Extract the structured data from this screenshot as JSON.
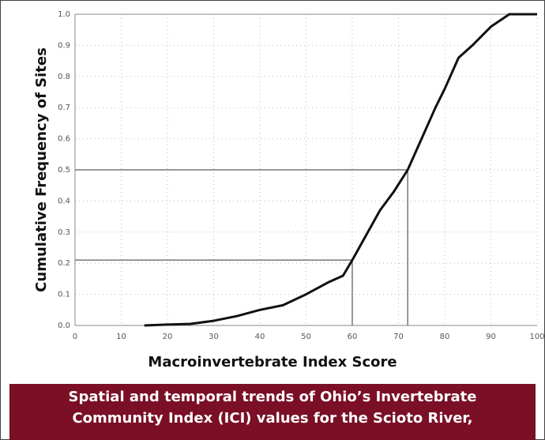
{
  "chart_data": {
    "type": "line",
    "xlabel": "Macroinvertebrate Index Score",
    "ylabel": "Cumulative Frequency of Sites",
    "x": [
      15,
      20,
      25,
      30,
      35,
      40,
      45,
      50,
      55,
      58,
      60,
      63,
      66,
      69,
      72,
      75,
      78,
      80,
      83,
      86,
      90,
      94,
      100
    ],
    "values": [
      0,
      0.003,
      0.005,
      0.015,
      0.03,
      0.05,
      0.065,
      0.1,
      0.14,
      0.16,
      0.21,
      0.29,
      0.37,
      0.43,
      0.5,
      0.6,
      0.7,
      0.76,
      0.86,
      0.9,
      0.96,
      1.0,
      1.0
    ],
    "color": "#111111",
    "xlim": [
      0,
      100
    ],
    "xticks": [
      0,
      10,
      20,
      30,
      40,
      50,
      60,
      70,
      80,
      90,
      100
    ],
    "ylim": [
      0,
      1
    ],
    "yticks": [
      {
        "value": 0,
        "label": "0.0"
      },
      0.1,
      0.2,
      0.3,
      0.4,
      0.5,
      0.6,
      0.7,
      0.8,
      0.9,
      {
        "value": 1,
        "label": "1.0"
      }
    ],
    "grid": true,
    "reference_lines": [
      {
        "x": 72,
        "y": 0.5
      },
      {
        "x": 60,
        "y": 0.21
      }
    ]
  },
  "caption": [
    "Spatial and temporal trends of Ohio’s Invertebrate",
    "Community Index (ICI) values for the Scioto River,"
  ]
}
